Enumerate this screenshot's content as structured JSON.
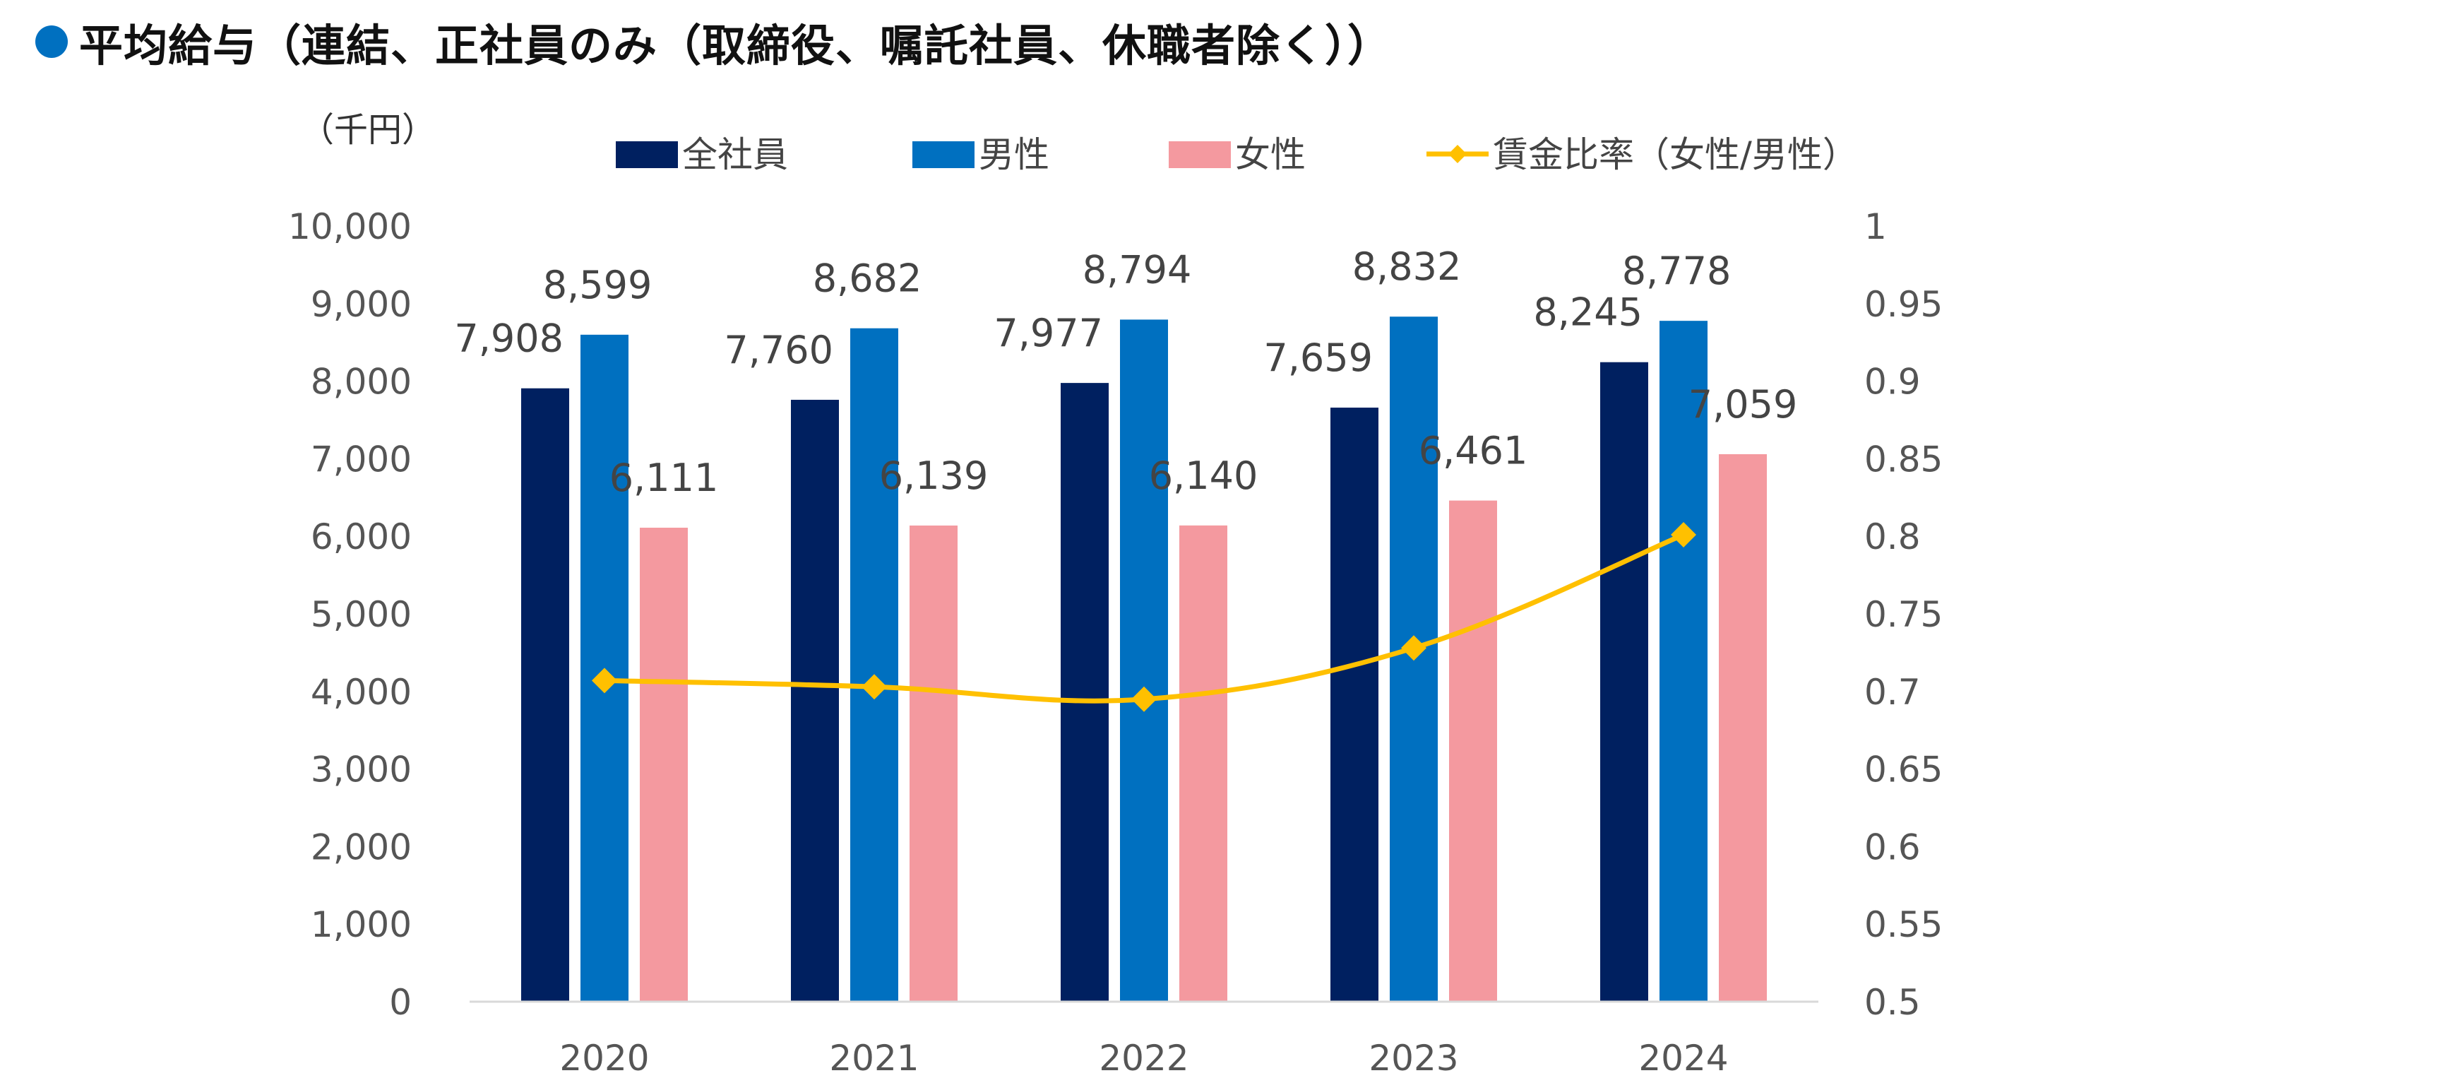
{
  "title": "平均給与（連結、正社員のみ（取締役、嘱託社員、休職者除く））",
  "chart_data": {
    "type": "bar",
    "title": "平均給与（連結、正社員のみ（取締役、嘱託社員、休職者除く））",
    "y_unit_label": "（千円）",
    "categories": [
      "2020",
      "2021",
      "2022",
      "2023",
      "2024"
    ],
    "series": [
      {
        "name": "全社員",
        "type": "bar",
        "axis": "left",
        "color": "#002060",
        "values": [
          7908,
          7760,
          7977,
          7659,
          8245
        ],
        "labels": [
          "7,908",
          "7,760",
          "7,977",
          "7,659",
          "8,245"
        ]
      },
      {
        "name": "男性",
        "type": "bar",
        "axis": "left",
        "color": "#0070c0",
        "values": [
          8599,
          8682,
          8794,
          8832,
          8778
        ],
        "labels": [
          "8,599",
          "8,682",
          "8,794",
          "8,832",
          "8,778"
        ]
      },
      {
        "name": "女性",
        "type": "bar",
        "axis": "left",
        "color": "#f4999f",
        "values": [
          6111,
          6139,
          6140,
          6461,
          7059
        ],
        "labels": [
          "6,111",
          "6,139",
          "6,140",
          "6,461",
          "7,059"
        ]
      },
      {
        "name": "賃金比率（女性/男性）",
        "type": "line",
        "axis": "right",
        "color": "#ffc000",
        "values": [
          0.707,
          0.703,
          0.695,
          0.728,
          0.801
        ]
      }
    ],
    "y_left": {
      "min": 0,
      "max": 10000,
      "ticks": [
        "0",
        "1,000",
        "2,000",
        "3,000",
        "4,000",
        "5,000",
        "6,000",
        "7,000",
        "8,000",
        "9,000",
        "10,000"
      ]
    },
    "y_right": {
      "min": 0.5,
      "max": 1.0,
      "ticks": [
        "0.5",
        "0.55",
        "0.6",
        "0.65",
        "0.7",
        "0.75",
        "0.8",
        "0.85",
        "0.9",
        "0.95",
        "1"
      ]
    },
    "grid": false,
    "legend_position": "top"
  }
}
